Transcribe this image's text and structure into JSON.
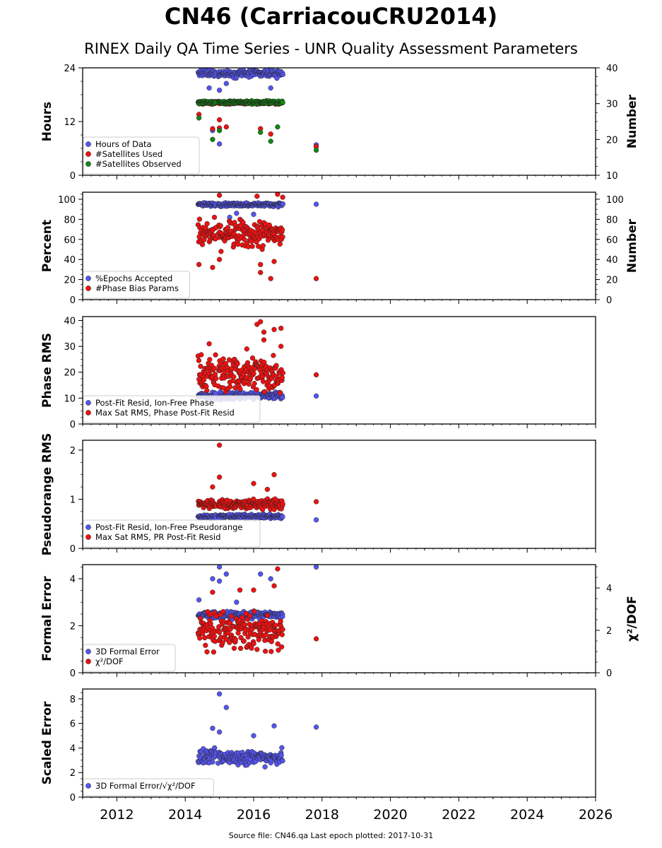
{
  "figure": {
    "title": "CN46 (CarriacouCRU2014)",
    "subtitle": "RINEX Daily QA Time Series - UNR Quality Assessment Parameters",
    "footer": "Source file: CN46.qa Last epoch plotted: 2017-10-31",
    "x_ticks": [
      "2012",
      "2014",
      "2016",
      "2018",
      "2020",
      "2022",
      "2024",
      "2026"
    ],
    "colors": {
      "blue": "#5555ee",
      "red": "#ee1111",
      "green": "#118811"
    }
  },
  "chart_data": [
    {
      "type": "scatter",
      "ylabel": "Hours",
      "ylabel_right": "Number",
      "xlim": [
        2011.0,
        2026.0
      ],
      "ylim": [
        0,
        24
      ],
      "ylim_right": [
        10,
        40
      ],
      "yticks": [
        "0",
        "12",
        "24"
      ],
      "yticks_right": [
        "10",
        "20",
        "30",
        "40"
      ],
      "legend_position": "lower-left",
      "series": [
        {
          "name": "Hours of Data",
          "color": "blue",
          "axis": "left",
          "band": [
            21.5,
            24
          ],
          "spread": 0.6,
          "points": [
            [
              2017.83,
              6.8
            ],
            [
              2015.0,
              7.0
            ],
            [
              2014.8,
              10.0
            ],
            [
              2014.7,
              19.5
            ],
            [
              2015.0,
              19.0
            ],
            [
              2015.2,
              20.5
            ],
            [
              2016.5,
              19.5
            ]
          ]
        },
        {
          "name": "#Satellites Used",
          "color": "red",
          "axis": "right",
          "band": [
            29.4,
            31.0
          ],
          "spread": 0.4,
          "points": [
            [
              2017.83,
              18.0
            ],
            [
              2014.8,
              23.0
            ],
            [
              2015.0,
              23.2
            ],
            [
              2015.2,
              23.5
            ],
            [
              2015.0,
              25.5
            ],
            [
              2016.2,
              23.0
            ],
            [
              2016.5,
              21.5
            ],
            [
              2014.4,
              27.0
            ]
          ]
        },
        {
          "name": "#Satellites Observed",
          "color": "green",
          "axis": "right",
          "band": [
            29.5,
            31.3
          ],
          "spread": 0.4,
          "points": [
            [
              2017.83,
              17.0
            ],
            [
              2014.8,
              20.0
            ],
            [
              2015.0,
              22.5
            ],
            [
              2016.2,
              22.0
            ],
            [
              2016.5,
              19.5
            ],
            [
              2016.7,
              23.5
            ],
            [
              2014.4,
              26.0
            ]
          ]
        }
      ]
    },
    {
      "type": "scatter",
      "ylabel": "Percent",
      "ylabel_right": "Number",
      "xlim": [
        2011.0,
        2026.0
      ],
      "ylim": [
        0,
        107
      ],
      "ylim_right": [
        0,
        107
      ],
      "yticks": [
        "0",
        "20",
        "40",
        "60",
        "80",
        "100"
      ],
      "yticks_right": [
        "0",
        "20",
        "40",
        "60",
        "80",
        "100"
      ],
      "legend_position": "lower-left",
      "series": [
        {
          "name": "%Epochs Accepted",
          "color": "blue",
          "axis": "left",
          "band": [
            92,
            97.5
          ],
          "spread": 0.6,
          "points": [
            [
              2017.83,
              95.0
            ],
            [
              2015.5,
              86.0
            ],
            [
              2016.0,
              85.0
            ],
            [
              2015.3,
              82.0
            ]
          ]
        },
        {
          "name": "#Phase Bias Params",
          "color": "red",
          "axis": "right",
          "band": [
            48,
            82
          ],
          "spread": 0.8,
          "points": [
            [
              2017.83,
              21.0
            ],
            [
              2014.4,
              35.0
            ],
            [
              2014.8,
              32.0
            ],
            [
              2015.0,
              40.0
            ],
            [
              2016.2,
              35.0
            ],
            [
              2016.2,
              27.0
            ],
            [
              2016.5,
              21.0
            ],
            [
              2016.6,
              38.0
            ],
            [
              2015.0,
              104.0
            ],
            [
              2016.1,
              103.0
            ],
            [
              2016.7,
              105.0
            ],
            [
              2016.85,
              102.0
            ]
          ]
        }
      ]
    },
    {
      "type": "scatter",
      "ylabel": "Phase RMS",
      "xlim": [
        2011.0,
        2026.0
      ],
      "ylim": [
        0,
        41.5
      ],
      "yticks": [
        "0",
        "10",
        "20",
        "30",
        "40"
      ],
      "legend_position": "lower-left",
      "series": [
        {
          "name": "Post-Fit Resid, Ion-Free Phase",
          "color": "blue",
          "axis": "left",
          "band": [
            8.5,
            13.5
          ],
          "spread": 0.6,
          "points": [
            [
              2017.83,
              10.8
            ]
          ]
        },
        {
          "name": "Max Sat RMS, Phase Post-Fit Resid",
          "color": "red",
          "axis": "left",
          "band": [
            11,
            28
          ],
          "spread": 0.8,
          "points": [
            [
              2017.83,
              19.0
            ],
            [
              2014.7,
              31.0
            ],
            [
              2016.1,
              38.5
            ],
            [
              2016.2,
              39.5
            ],
            [
              2016.3,
              35.5
            ],
            [
              2016.3,
              32.5
            ],
            [
              2016.6,
              36.5
            ],
            [
              2016.8,
              37.0
            ],
            [
              2016.8,
              30.0
            ],
            [
              2015.8,
              29.0
            ]
          ]
        }
      ]
    },
    {
      "type": "scatter",
      "ylabel": "Pseudorange RMS",
      "xlim": [
        2011.0,
        2026.0
      ],
      "ylim": [
        0,
        2.2
      ],
      "yticks": [
        "0",
        "1",
        "2"
      ],
      "legend_position": "lower-left",
      "series": [
        {
          "name": "Post-Fit Resid, Ion-Free Pseudorange",
          "color": "blue",
          "axis": "left",
          "band": [
            0.58,
            0.72
          ],
          "spread": 0.6,
          "points": [
            [
              2017.83,
              0.58
            ]
          ]
        },
        {
          "name": "Max Sat RMS, PR Post-Fit Resid",
          "color": "red",
          "axis": "left",
          "band": [
            0.78,
            1.02
          ],
          "spread": 0.8,
          "points": [
            [
              2017.83,
              0.95
            ],
            [
              2015.0,
              2.1
            ],
            [
              2015.0,
              1.45
            ],
            [
              2016.6,
              1.5
            ],
            [
              2016.0,
              1.32
            ],
            [
              2014.8,
              1.25
            ],
            [
              2016.4,
              1.2
            ]
          ]
        }
      ]
    },
    {
      "type": "scatter",
      "ylabel": "Formal Error",
      "ylabel_right": "χ²/DOF",
      "xlim": [
        2011.0,
        2026.0
      ],
      "ylim": [
        0,
        4.6
      ],
      "ylim_right": [
        0,
        5.1
      ],
      "yticks": [
        "0",
        "2",
        "4"
      ],
      "yticks_right": [
        "0",
        "2",
        "4"
      ],
      "legend_position": "lower-left",
      "series": [
        {
          "name": "3D Formal Error",
          "color": "blue",
          "axis": "left",
          "band": [
            2.2,
            2.7
          ],
          "spread": 0.6,
          "points": [
            [
              2017.83,
              4.5
            ],
            [
              2014.4,
              3.1
            ],
            [
              2014.8,
              4.0
            ],
            [
              2015.0,
              4.5
            ],
            [
              2015.0,
              3.9
            ],
            [
              2015.2,
              4.2
            ],
            [
              2016.2,
              4.2
            ],
            [
              2016.5,
              4.0
            ],
            [
              2015.5,
              3.0
            ]
          ]
        },
        {
          "name": "χ²/DOF",
          "color": "red",
          "axis": "right",
          "band": [
            0.9,
            3.0
          ],
          "spread": 0.8,
          "points": [
            [
              2017.83,
              1.6
            ],
            [
              2014.8,
              3.8
            ],
            [
              2016.0,
              3.9
            ],
            [
              2016.7,
              4.9
            ],
            [
              2016.6,
              4.1
            ],
            [
              2015.6,
              3.9
            ]
          ]
        }
      ]
    },
    {
      "type": "scatter",
      "ylabel": "Scaled Error",
      "xlim": [
        2011.0,
        2026.0
      ],
      "ylim": [
        0,
        8.8
      ],
      "yticks": [
        "0",
        "2",
        "4",
        "6",
        "8"
      ],
      "legend_position": "lower-left",
      "series": [
        {
          "name": "3D Formal Error/√χ²/DOF",
          "color": "blue",
          "axis": "left",
          "band": [
            2.3,
            4.2
          ],
          "spread": 0.6,
          "points": [
            [
              2017.83,
              5.7
            ],
            [
              2015.0,
              8.4
            ],
            [
              2015.2,
              7.3
            ],
            [
              2014.8,
              5.6
            ],
            [
              2016.6,
              5.8
            ],
            [
              2015.0,
              5.3
            ],
            [
              2016.0,
              5.0
            ]
          ]
        }
      ]
    }
  ]
}
